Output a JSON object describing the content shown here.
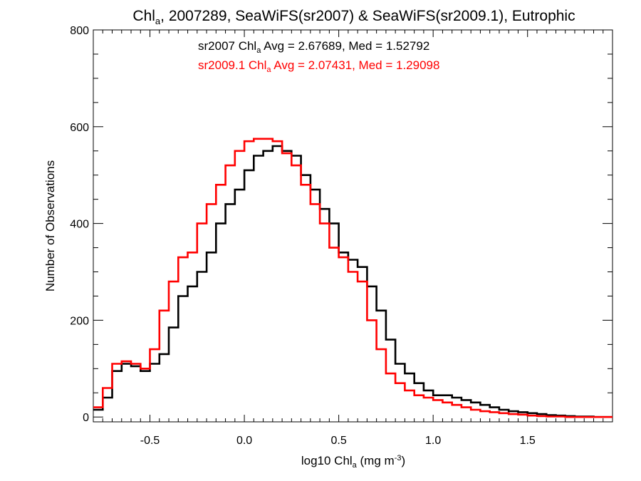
{
  "chart_data": {
    "type": "line",
    "title": {
      "main": "Chl",
      "sub": "a",
      "rest": ", 2007289, SeaWiFS(sr2007) & SeaWiFS(sr2009.1), Eutrophic"
    },
    "xlabel": {
      "pre": "log10 Chl",
      "sub": "a",
      "mid": " (mg m",
      "sup": "-3",
      "post": ")"
    },
    "ylabel": "Number of Observations",
    "xlim": [
      -0.8,
      1.95
    ],
    "ylim": [
      -10,
      800
    ],
    "xticks": [
      -0.5,
      0.0,
      0.5,
      1.0,
      1.5
    ],
    "xtick_labels": [
      "-0.5",
      "0.0",
      "0.5",
      "1.0",
      "1.5"
    ],
    "yticks": [
      0,
      200,
      400,
      600,
      800
    ],
    "ytick_labels": [
      "0",
      "200",
      "400",
      "600",
      "800"
    ],
    "step": "histogram",
    "bin_width": 0.05,
    "annotations": [
      {
        "pre": "sr2007 Chl",
        "sub": "a",
        "post": " Avg = 2.67689, Med = 1.52792",
        "color": "#000000"
      },
      {
        "pre": "sr2009.1 Chl",
        "sub": "a",
        "post": " Avg = 2.07431, Med = 1.29098",
        "color": "#ff0000"
      }
    ],
    "series": [
      {
        "color": "#000000",
        "x": [
          -0.8,
          -0.75,
          -0.7,
          -0.65,
          -0.6,
          -0.55,
          -0.5,
          -0.45,
          -0.4,
          -0.35,
          -0.3,
          -0.25,
          -0.2,
          -0.15,
          -0.1,
          -0.05,
          0.0,
          0.05,
          0.1,
          0.15,
          0.2,
          0.25,
          0.3,
          0.35,
          0.4,
          0.45,
          0.5,
          0.55,
          0.6,
          0.65,
          0.7,
          0.75,
          0.8,
          0.85,
          0.9,
          0.95,
          1.0,
          1.05,
          1.1,
          1.15,
          1.2,
          1.25,
          1.3,
          1.35,
          1.4,
          1.45,
          1.5,
          1.55,
          1.6,
          1.65,
          1.7,
          1.75,
          1.8,
          1.85,
          1.9
        ],
        "values": [
          15,
          40,
          95,
          110,
          105,
          95,
          110,
          130,
          185,
          250,
          270,
          300,
          340,
          400,
          440,
          470,
          510,
          540,
          550,
          560,
          550,
          540,
          500,
          470,
          430,
          400,
          340,
          325,
          310,
          270,
          220,
          160,
          110,
          90,
          70,
          55,
          45,
          45,
          40,
          35,
          30,
          25,
          20,
          15,
          12,
          10,
          8,
          6,
          4,
          3,
          2,
          1,
          1,
          0,
          0
        ]
      },
      {
        "color": "#ff0000",
        "x": [
          -0.8,
          -0.75,
          -0.7,
          -0.65,
          -0.6,
          -0.55,
          -0.5,
          -0.45,
          -0.4,
          -0.35,
          -0.3,
          -0.25,
          -0.2,
          -0.15,
          -0.1,
          -0.05,
          0.0,
          0.05,
          0.1,
          0.15,
          0.2,
          0.25,
          0.3,
          0.35,
          0.4,
          0.45,
          0.5,
          0.55,
          0.6,
          0.65,
          0.7,
          0.75,
          0.8,
          0.85,
          0.9,
          0.95,
          1.0,
          1.05,
          1.1,
          1.15,
          1.2,
          1.25,
          1.3,
          1.35,
          1.4,
          1.45,
          1.5,
          1.55,
          1.6,
          1.65,
          1.7,
          1.75,
          1.8,
          1.85,
          1.9
        ],
        "values": [
          20,
          60,
          110,
          115,
          110,
          100,
          140,
          220,
          280,
          330,
          340,
          400,
          440,
          480,
          520,
          550,
          570,
          575,
          575,
          570,
          545,
          520,
          480,
          440,
          400,
          350,
          330,
          300,
          280,
          200,
          140,
          90,
          70,
          55,
          45,
          40,
          35,
          30,
          25,
          20,
          15,
          12,
          10,
          8,
          6,
          5,
          3,
          2,
          1,
          1,
          0,
          0,
          0,
          0,
          0
        ]
      }
    ]
  }
}
